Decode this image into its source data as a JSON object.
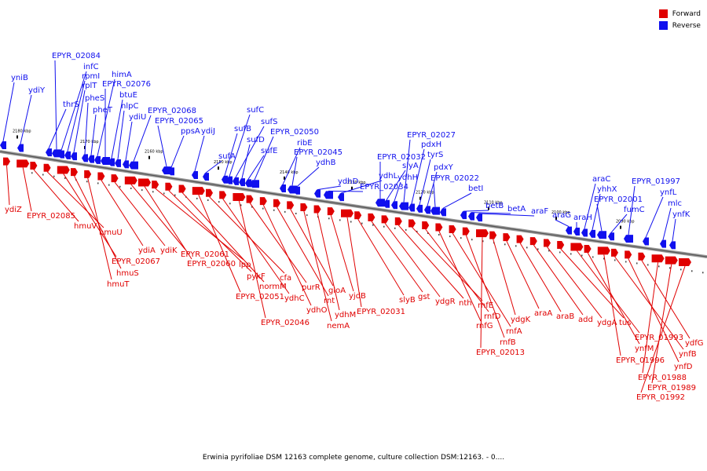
{
  "colors": {
    "forward": "#e00000",
    "reverse": "#1010ee",
    "backbone": "#777777",
    "tick": "#000000"
  },
  "legend": [
    {
      "label": "Forward",
      "color": "#e00000"
    },
    {
      "label": "Reverse",
      "color": "#1010ee"
    }
  ],
  "caption": "Erwinia pyrifoliae DSM 12163 complete genome, culture collection DSM:12163. - 0....",
  "scale_marks": [
    "2180 kbp",
    "2170 kbp",
    "2160 kbp",
    "2150 kbp",
    "2140 kbp",
    "2130 kbp",
    "2120 kbp",
    "2110 kbp",
    "2100 kbp",
    "2090 kbp"
  ],
  "reverse_genes": [
    "yniB",
    "ydiY",
    "thrS",
    "EPYR_02084",
    "infC",
    "rpmI",
    "rplT",
    "pheS",
    "pheT",
    "himA",
    "EPYR_02076",
    "btuE",
    "nlpC",
    "ydiU",
    "EPYR_02068",
    "EPYR_02065",
    "ppsA",
    "ydiJ",
    "sufA",
    "sufB",
    "sufC",
    "sufS",
    "sufD",
    "sufE",
    "EPYR_02050",
    "ribE",
    "EPYR_02045",
    "ydhB",
    "ydhD",
    "EPYR_02034",
    "ydhL",
    "EPYR_02032",
    "slyA",
    "ydhH",
    "EPYR_02027",
    "pdxH",
    "tyrS",
    "pdxY",
    "EPYR_02022",
    "betI",
    "betB",
    "betA",
    "araF",
    "araG",
    "araH",
    "araC",
    "yhhX",
    "EPYR_02001",
    "fumC",
    "EPYR_01997",
    "ynfL",
    "mlc",
    "ynfK"
  ],
  "forward_genes": [
    "ydiZ",
    "EPYR_02085",
    "hmuV",
    "hmuU",
    "EPYR_02067",
    "hmuS",
    "hmuT",
    "ydiA",
    "ydiK",
    "EPYR_02061",
    "EPYR_02060",
    "lpp",
    "pykF",
    "normM",
    "EPYR_02051",
    "cfa",
    "ydhC",
    "EPYR_02046",
    "purR",
    "ydhO",
    "rnt",
    "gloA",
    "nemA",
    "ydhM",
    "yjdB",
    "EPYR_02031",
    "slyB",
    "gst",
    "ydgR",
    "nth",
    "rnfE",
    "rnfD",
    "rnfG",
    "rnfA",
    "rnfB",
    "EPYR_02013",
    "ydgK",
    "araA",
    "araB",
    "add",
    "ydgA",
    "tus",
    "EPYR_01993",
    "ynfM",
    "EPYR_01996",
    "ynfB",
    "ynfD",
    "ydfG",
    "EPYR_01988",
    "EPYR_01989",
    "EPYR_01992"
  ]
}
